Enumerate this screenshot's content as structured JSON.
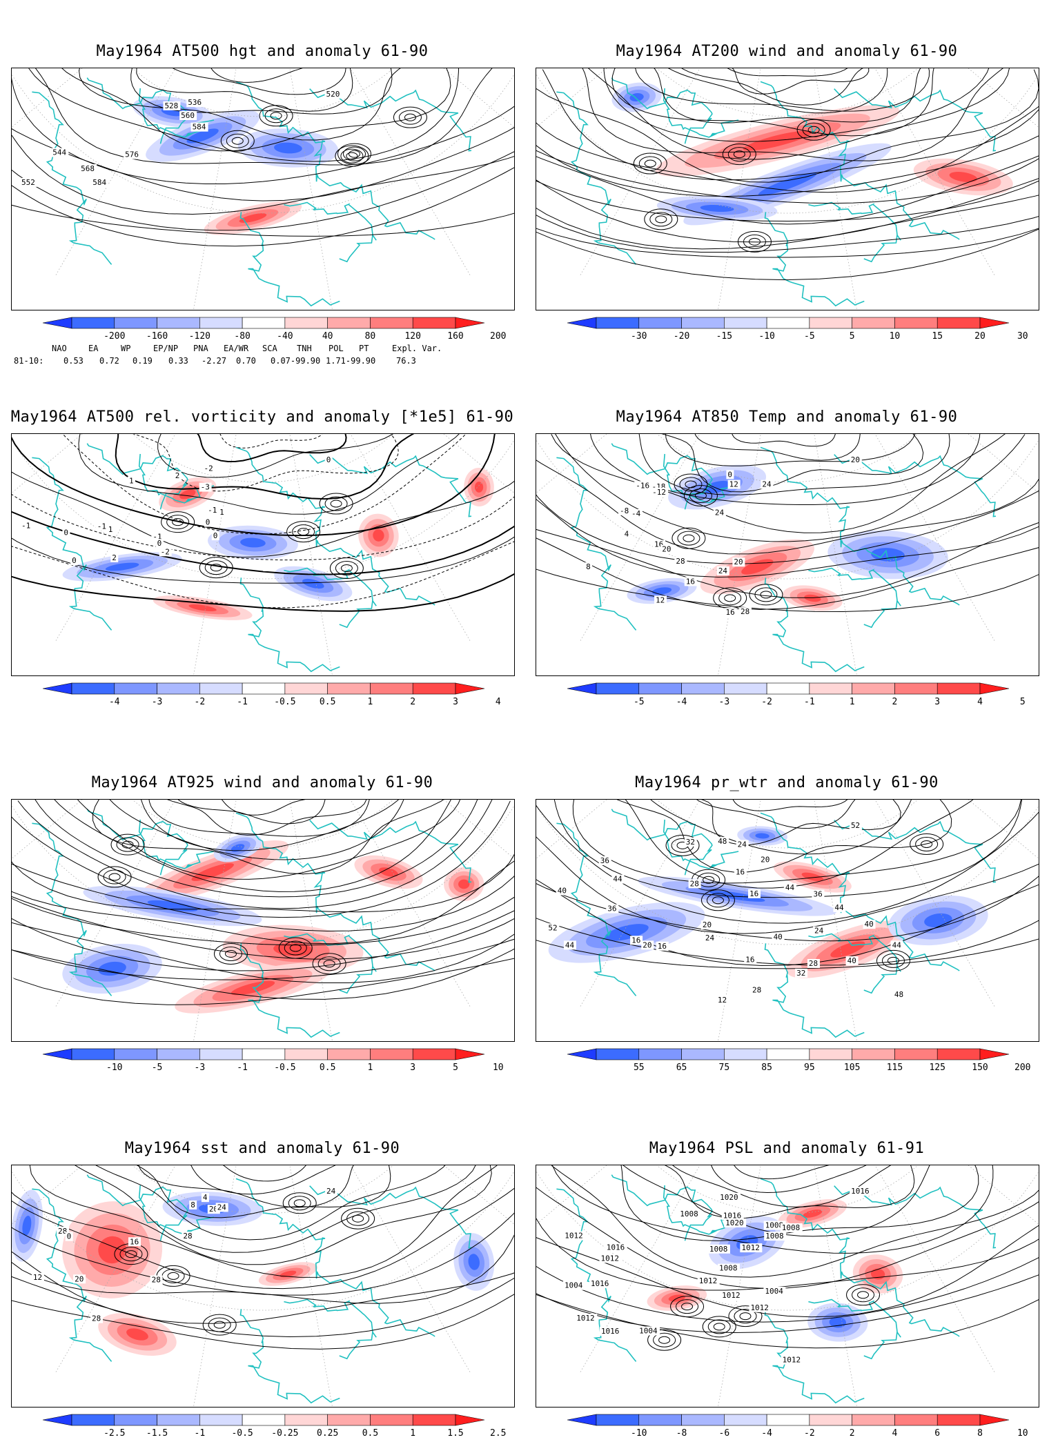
{
  "panels": [
    {
      "id": "p1",
      "title": "May1964 AT500 hgt and anomaly 61-90",
      "kind": "contour",
      "contour_labels": [
        "520",
        "528",
        "536",
        "544",
        "552",
        "560",
        "568",
        "576",
        "584",
        "584"
      ],
      "anom_blobs": [
        [
          0.38,
          0.28,
          "blue",
          0.12,
          0.07
        ],
        [
          0.55,
          0.33,
          "blue",
          0.1,
          0.08
        ],
        [
          0.48,
          0.62,
          "red",
          0.1,
          0.05
        ],
        [
          0.32,
          0.18,
          "blue",
          0.08,
          0.06
        ]
      ],
      "colorbar": {
        "ticks": [
          "-200",
          "-160",
          "-120",
          "-80",
          "-40",
          "40",
          "80",
          "120",
          "160",
          "200"
        ],
        "colors": [
          "#1e3cff",
          "#3c6cff",
          "#7e97ff",
          "#aab8ff",
          "#d6dcff",
          "#ffffff",
          "#ffd6d6",
          "#ffaaaa",
          "#ff7e7e",
          "#ff4a4a",
          "#ff1e1e"
        ]
      },
      "teleconnection": {
        "header": [
          "NAO",
          "EA",
          "WP",
          "EP/NP",
          "PNA",
          "EA/WR",
          "SCA",
          "TNH",
          "POL",
          "PT",
          "Expl. Var."
        ],
        "row_label": "81-10:",
        "values": [
          "0.53",
          "0.72",
          "0.19",
          "0.33",
          "-2.27",
          "0.70",
          "0.07-99.90",
          "1.71-99.90",
          "76.3"
        ]
      }
    },
    {
      "id": "p2",
      "title": "May1964 AT200 wind and anomaly 61-90",
      "kind": "stream",
      "contour_labels": [],
      "anom_blobs": [
        [
          0.5,
          0.48,
          "blue",
          0.22,
          0.07
        ],
        [
          0.36,
          0.58,
          "blue",
          0.12,
          0.05
        ],
        [
          0.48,
          0.3,
          "red",
          0.25,
          0.08
        ],
        [
          0.85,
          0.45,
          "red",
          0.1,
          0.07
        ],
        [
          0.2,
          0.12,
          "blue",
          0.05,
          0.06
        ]
      ],
      "colorbar": {
        "ticks": [
          "-30",
          "-20",
          "-15",
          "-10",
          "-5",
          "5",
          "10",
          "15",
          "20",
          "30"
        ],
        "colors": [
          "#1e3cff",
          "#3c6cff",
          "#7e97ff",
          "#aab8ff",
          "#d6dcff",
          "#ffffff",
          "#ffd6d6",
          "#ffaaaa",
          "#ff7e7e",
          "#ff4a4a",
          "#ff1e1e"
        ]
      }
    },
    {
      "id": "p3",
      "title": "May1964 AT500 rel. vorticity and anomaly [*1e5] 61-90",
      "kind": "vort",
      "contour_labels": [
        "0",
        "1",
        "-1",
        "2",
        "-2",
        "0",
        "-1",
        "1",
        "0",
        "-3",
        "2",
        "-1",
        "0",
        "-2",
        "-1",
        "0",
        "1",
        "0"
      ],
      "anom_blobs": [
        [
          0.35,
          0.25,
          "red",
          0.06,
          0.06
        ],
        [
          0.48,
          0.45,
          "blue",
          0.09,
          0.07
        ],
        [
          0.73,
          0.42,
          "red",
          0.04,
          0.09
        ],
        [
          0.38,
          0.72,
          "red",
          0.1,
          0.04
        ],
        [
          0.22,
          0.55,
          "blue",
          0.12,
          0.05
        ],
        [
          0.6,
          0.62,
          "blue",
          0.08,
          0.06
        ],
        [
          0.93,
          0.22,
          "red",
          0.03,
          0.08
        ]
      ],
      "colorbar": {
        "ticks": [
          "-4",
          "-3",
          "-2",
          "-1",
          "-0.5",
          "0.5",
          "1",
          "2",
          "3",
          "4"
        ],
        "colors": [
          "#1e3cff",
          "#3c6cff",
          "#7e97ff",
          "#aab8ff",
          "#d6dcff",
          "#ffffff",
          "#ffd6d6",
          "#ffaaaa",
          "#ff7e7e",
          "#ff4a4a",
          "#ff1e1e"
        ]
      }
    },
    {
      "id": "p4",
      "title": "May1964 AT850 Temp and anomaly 61-90",
      "kind": "contour",
      "contour_labels": [
        "20",
        "-16",
        "-18",
        "-12",
        "-8",
        "-4",
        "0",
        "4",
        "8",
        "12",
        "16",
        "20",
        "24",
        "28",
        "12",
        "16",
        "24",
        "24",
        "20",
        "16",
        "28"
      ],
      "anom_blobs": [
        [
          0.44,
          0.55,
          "red",
          0.12,
          0.08
        ],
        [
          0.7,
          0.5,
          "blue",
          0.12,
          0.1
        ],
        [
          0.36,
          0.22,
          "blue",
          0.1,
          0.08
        ],
        [
          0.55,
          0.68,
          "red",
          0.06,
          0.05
        ],
        [
          0.25,
          0.65,
          "blue",
          0.07,
          0.05
        ]
      ],
      "colorbar": {
        "ticks": [
          "-5",
          "-4",
          "-3",
          "-2",
          "-1",
          "1",
          "2",
          "3",
          "4",
          "5"
        ],
        "colors": [
          "#1e3cff",
          "#3c6cff",
          "#7e97ff",
          "#aab8ff",
          "#d6dcff",
          "#ffffff",
          "#ffd6d6",
          "#ffaaaa",
          "#ff7e7e",
          "#ff4a4a",
          "#ff1e1e"
        ]
      }
    },
    {
      "id": "p5",
      "title": "May1964 AT925 wind and anomaly 61-90",
      "kind": "stream",
      "contour_labels": [],
      "anom_blobs": [
        [
          0.4,
          0.3,
          "red",
          0.16,
          0.07
        ],
        [
          0.56,
          0.62,
          "red",
          0.14,
          0.1
        ],
        [
          0.48,
          0.78,
          "red",
          0.16,
          0.07
        ],
        [
          0.32,
          0.44,
          "blue",
          0.18,
          0.06
        ],
        [
          0.2,
          0.7,
          "blue",
          0.1,
          0.1
        ],
        [
          0.75,
          0.3,
          "red",
          0.07,
          0.06
        ],
        [
          0.9,
          0.35,
          "red",
          0.04,
          0.07
        ],
        [
          0.45,
          0.2,
          "blue",
          0.05,
          0.05
        ]
      ],
      "colorbar": {
        "ticks": [
          "-10",
          "-5",
          "-3",
          "-1",
          "-0.5",
          "0.5",
          "1",
          "3",
          "5",
          "10"
        ],
        "colors": [
          "#1e3cff",
          "#3c6cff",
          "#7e97ff",
          "#aab8ff",
          "#d6dcff",
          "#ffffff",
          "#ffd6d6",
          "#ffaaaa",
          "#ff7e7e",
          "#ff4a4a",
          "#ff1e1e"
        ]
      }
    },
    {
      "id": "p6",
      "title": "May1964 pr_wtr and anomaly 61-90",
      "kind": "contour",
      "contour_labels": [
        "52",
        "36",
        "32",
        "40",
        "44",
        "48",
        "52",
        "36",
        "44",
        "24",
        "28",
        "16",
        "20",
        "16",
        "16",
        "20",
        "24",
        "20",
        "16",
        "12",
        "16",
        "28",
        "40",
        "44",
        "32",
        "28",
        "24",
        "36",
        "40",
        "44",
        "48",
        "40",
        "44"
      ],
      "anom_blobs": [
        [
          0.62,
          0.62,
          "red",
          0.13,
          0.08
        ],
        [
          0.45,
          0.15,
          "blue",
          0.05,
          0.04
        ],
        [
          0.18,
          0.55,
          "blue",
          0.16,
          0.1
        ],
        [
          0.4,
          0.4,
          "blue",
          0.2,
          0.05
        ],
        [
          0.8,
          0.5,
          "blue",
          0.1,
          0.1
        ],
        [
          0.55,
          0.32,
          "red",
          0.08,
          0.05
        ]
      ],
      "colorbar": {
        "ticks": [
          "55",
          "65",
          "75",
          "85",
          "95",
          "105",
          "115",
          "125",
          "150",
          "200"
        ],
        "colors": [
          "#1e3cff",
          "#3c6cff",
          "#7e97ff",
          "#aab8ff",
          "#d6dcff",
          "#ffffff",
          "#ffd6d6",
          "#ffaaaa",
          "#ff7e7e",
          "#ff4a4a",
          "#ff1e1e"
        ]
      }
    },
    {
      "id": "p7",
      "title": "May1964 sst and anomaly 61-90",
      "kind": "contour",
      "contour_labels": [
        "24",
        "28",
        "0",
        "4",
        "8",
        "12",
        "16",
        "20",
        "20",
        "24",
        "28",
        "28",
        "28"
      ],
      "anom_blobs": [
        [
          0.2,
          0.35,
          "red",
          0.1,
          0.2
        ],
        [
          0.4,
          0.18,
          "blue",
          0.1,
          0.07
        ],
        [
          0.55,
          0.45,
          "red",
          0.06,
          0.04
        ],
        [
          0.03,
          0.25,
          "blue",
          0.03,
          0.15
        ],
        [
          0.92,
          0.4,
          "blue",
          0.04,
          0.12
        ],
        [
          0.25,
          0.7,
          "red",
          0.08,
          0.08
        ]
      ],
      "colorbar": {
        "ticks": [
          "-2.5",
          "-1.5",
          "-1",
          "-0.5",
          "-0.25",
          "0.25",
          "0.5",
          "1",
          "1.5",
          "2.5"
        ],
        "colors": [
          "#1e3cff",
          "#3c6cff",
          "#7e97ff",
          "#aab8ff",
          "#d6dcff",
          "#ffffff",
          "#ffd6d6",
          "#ffaaaa",
          "#ff7e7e",
          "#ff4a4a",
          "#ff1e1e"
        ]
      }
    },
    {
      "id": "p8",
      "title": "May1964 PSL and anomaly 61-91",
      "kind": "contour",
      "contour_labels": [
        "1016",
        "1012",
        "1020",
        "1008",
        "1016",
        "1012",
        "1004",
        "1016",
        "1016",
        "1012",
        "1020",
        "1016",
        "1008",
        "1004",
        "1012",
        "1008",
        "1012",
        "1012",
        "1008",
        "1008",
        "1012",
        "1004",
        "1008",
        "1012"
      ],
      "anom_blobs": [
        [
          0.42,
          0.32,
          "blue",
          0.08,
          0.1
        ],
        [
          0.6,
          0.65,
          "blue",
          0.06,
          0.08
        ],
        [
          0.55,
          0.2,
          "red",
          0.07,
          0.05
        ],
        [
          0.68,
          0.45,
          "red",
          0.05,
          0.08
        ],
        [
          0.28,
          0.55,
          "red",
          0.06,
          0.05
        ]
      ],
      "colorbar": {
        "ticks": [
          "-10",
          "-8",
          "-6",
          "-4",
          "-2",
          "2",
          "4",
          "6",
          "8",
          "10"
        ],
        "colors": [
          "#1e3cff",
          "#3c6cff",
          "#7e97ff",
          "#aab8ff",
          "#d6dcff",
          "#ffffff",
          "#ffd6d6",
          "#ffaaaa",
          "#ff7e7e",
          "#ff4a4a",
          "#ff1e1e"
        ]
      }
    }
  ]
}
